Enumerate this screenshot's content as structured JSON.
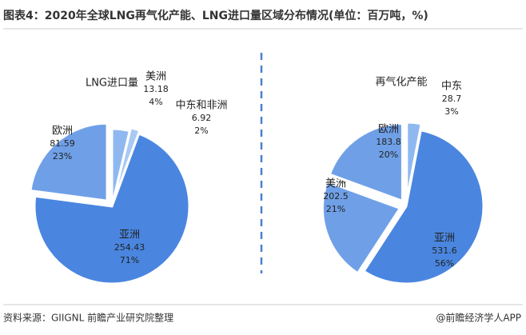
{
  "title": "图表4：2020年全球LNG再气化产能、LNG进口量区域分布情况(单位：百万吨，%)",
  "source": "资料来源：GIIGNL 前瞻产业研究院整理",
  "credit": "@前瞻经济学人APP",
  "chart_data": [
    {
      "type": "pie",
      "title": "LNG进口量",
      "categories": [
        "美洲",
        "中东和非洲",
        "亚洲",
        "欧洲"
      ],
      "values": [
        13.18,
        6.92,
        254.43,
        81.59
      ],
      "percent_labels": [
        "4%",
        "2%",
        "71%",
        "23%"
      ],
      "colors": [
        "#8fb8f0",
        "#a9c9f4",
        "#4a86e0",
        "#6fa0e7"
      ]
    },
    {
      "type": "pie",
      "title": "再气化产能",
      "categories": [
        "中东",
        "亚洲",
        "美洲",
        "欧洲"
      ],
      "values": [
        28.7,
        531.6,
        202.5,
        183.8
      ],
      "percent_labels": [
        "3%",
        "56%",
        "21%",
        "20%"
      ],
      "colors": [
        "#8fb8f0",
        "#4a86e0",
        "#6fa0e7",
        "#6fa0e7"
      ]
    }
  ]
}
